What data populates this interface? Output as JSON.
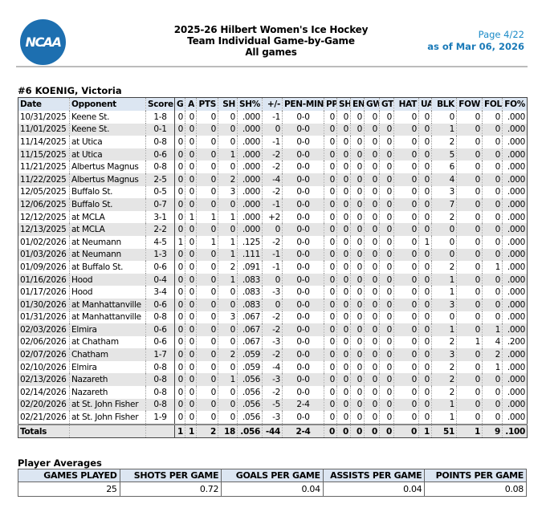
{
  "header": {
    "logo_text": "NCAA",
    "title": "2025-26 Hilbert Women's Ice Hockey",
    "subtitle": "Team Individual Game-by-Game",
    "filter": "All games",
    "page": "Page 4/22",
    "as_of": "as of Mar 06, 2026"
  },
  "player": "#6 KOENIG, Victoria",
  "columns": [
    "Date",
    "Opponent",
    "Score",
    "G",
    "A",
    "PTS",
    "SH",
    "SH%",
    "+/-",
    "PEN-MIN",
    "PP",
    "SH",
    "EN",
    "GW",
    "GT",
    "HAT",
    "UA",
    "BLK",
    "FOW",
    "FOL",
    "FO%"
  ],
  "rows": [
    [
      "10/31/2025",
      "Keene St.",
      "1-8",
      "0",
      "0",
      "0",
      "0",
      ".000",
      "-1",
      "0-0",
      "0",
      "0",
      "0",
      "0",
      "0",
      "0",
      "0",
      "0",
      "0",
      "0",
      ".000"
    ],
    [
      "11/01/2025",
      "Keene St.",
      "0-1",
      "0",
      "0",
      "0",
      "0",
      ".000",
      "0",
      "0-0",
      "0",
      "0",
      "0",
      "0",
      "0",
      "0",
      "0",
      "1",
      "0",
      "0",
      ".000"
    ],
    [
      "11/14/2025",
      "at Utica",
      "0-8",
      "0",
      "0",
      "0",
      "0",
      ".000",
      "-1",
      "0-0",
      "0",
      "0",
      "0",
      "0",
      "0",
      "0",
      "0",
      "2",
      "0",
      "0",
      ".000"
    ],
    [
      "11/15/2025",
      "at Utica",
      "0-6",
      "0",
      "0",
      "0",
      "1",
      ".000",
      "-2",
      "0-0",
      "0",
      "0",
      "0",
      "0",
      "0",
      "0",
      "0",
      "5",
      "0",
      "0",
      ".000"
    ],
    [
      "11/21/2025",
      "Albertus Magnus",
      "0-8",
      "0",
      "0",
      "0",
      "0",
      ".000",
      "-2",
      "0-0",
      "0",
      "0",
      "0",
      "0",
      "0",
      "0",
      "0",
      "6",
      "0",
      "0",
      ".000"
    ],
    [
      "11/22/2025",
      "Albertus Magnus",
      "2-5",
      "0",
      "0",
      "0",
      "2",
      ".000",
      "-4",
      "0-0",
      "0",
      "0",
      "0",
      "0",
      "0",
      "0",
      "0",
      "4",
      "0",
      "0",
      ".000"
    ],
    [
      "12/05/2025",
      "Buffalo St.",
      "0-5",
      "0",
      "0",
      "0",
      "3",
      ".000",
      "-2",
      "0-0",
      "0",
      "0",
      "0",
      "0",
      "0",
      "0",
      "0",
      "3",
      "0",
      "0",
      ".000"
    ],
    [
      "12/06/2025",
      "Buffalo St.",
      "0-7",
      "0",
      "0",
      "0",
      "0",
      ".000",
      "-1",
      "0-0",
      "0",
      "0",
      "0",
      "0",
      "0",
      "0",
      "0",
      "7",
      "0",
      "0",
      ".000"
    ],
    [
      "12/12/2025",
      "at MCLA",
      "3-1",
      "0",
      "1",
      "1",
      "1",
      ".000",
      "+2",
      "0-0",
      "0",
      "0",
      "0",
      "0",
      "0",
      "0",
      "0",
      "2",
      "0",
      "0",
      ".000"
    ],
    [
      "12/13/2025",
      "at MCLA",
      "2-2",
      "0",
      "0",
      "0",
      "0",
      ".000",
      "0",
      "0-0",
      "0",
      "0",
      "0",
      "0",
      "0",
      "0",
      "0",
      "0",
      "0",
      "0",
      ".000"
    ],
    [
      "01/02/2026",
      "at Neumann",
      "4-5",
      "1",
      "0",
      "1",
      "1",
      ".125",
      "-2",
      "0-0",
      "0",
      "0",
      "0",
      "0",
      "0",
      "0",
      "1",
      "0",
      "0",
      "0",
      ".000"
    ],
    [
      "01/03/2026",
      "at Neumann",
      "1-3",
      "0",
      "0",
      "0",
      "1",
      ".111",
      "-1",
      "0-0",
      "0",
      "0",
      "0",
      "0",
      "0",
      "0",
      "0",
      "0",
      "0",
      "0",
      ".000"
    ],
    [
      "01/09/2026",
      "at Buffalo St.",
      "0-6",
      "0",
      "0",
      "0",
      "2",
      ".091",
      "-1",
      "0-0",
      "0",
      "0",
      "0",
      "0",
      "0",
      "0",
      "0",
      "2",
      "0",
      "1",
      ".000"
    ],
    [
      "01/16/2026",
      "Hood",
      "0-4",
      "0",
      "0",
      "0",
      "1",
      ".083",
      "0",
      "0-0",
      "0",
      "0",
      "0",
      "0",
      "0",
      "0",
      "0",
      "1",
      "0",
      "0",
      ".000"
    ],
    [
      "01/17/2026",
      "Hood",
      "3-4",
      "0",
      "0",
      "0",
      "0",
      ".083",
      "-3",
      "0-0",
      "0",
      "0",
      "0",
      "0",
      "0",
      "0",
      "0",
      "1",
      "0",
      "0",
      ".000"
    ],
    [
      "01/30/2026",
      "at Manhattanville",
      "0-6",
      "0",
      "0",
      "0",
      "0",
      ".083",
      "0",
      "0-0",
      "0",
      "0",
      "0",
      "0",
      "0",
      "0",
      "0",
      "3",
      "0",
      "0",
      ".000"
    ],
    [
      "01/31/2026",
      "at Manhattanville",
      "0-8",
      "0",
      "0",
      "0",
      "3",
      ".067",
      "-2",
      "0-0",
      "0",
      "0",
      "0",
      "0",
      "0",
      "0",
      "0",
      "0",
      "0",
      "0",
      ".000"
    ],
    [
      "02/03/2026",
      "Elmira",
      "0-6",
      "0",
      "0",
      "0",
      "0",
      ".067",
      "-2",
      "0-0",
      "0",
      "0",
      "0",
      "0",
      "0",
      "0",
      "0",
      "1",
      "0",
      "1",
      ".000"
    ],
    [
      "02/06/2026",
      "at Chatham",
      "0-6",
      "0",
      "0",
      "0",
      "0",
      ".067",
      "-3",
      "0-0",
      "0",
      "0",
      "0",
      "0",
      "0",
      "0",
      "0",
      "2",
      "1",
      "4",
      ".200"
    ],
    [
      "02/07/2026",
      "Chatham",
      "1-7",
      "0",
      "0",
      "0",
      "2",
      ".059",
      "-2",
      "0-0",
      "0",
      "0",
      "0",
      "0",
      "0",
      "0",
      "0",
      "3",
      "0",
      "2",
      ".000"
    ],
    [
      "02/10/2026",
      "Elmira",
      "0-8",
      "0",
      "0",
      "0",
      "0",
      ".059",
      "-4",
      "0-0",
      "0",
      "0",
      "0",
      "0",
      "0",
      "0",
      "0",
      "2",
      "0",
      "1",
      ".000"
    ],
    [
      "02/13/2026",
      "Nazareth",
      "0-8",
      "0",
      "0",
      "0",
      "1",
      ".056",
      "-3",
      "0-0",
      "0",
      "0",
      "0",
      "0",
      "0",
      "0",
      "0",
      "2",
      "0",
      "0",
      ".000"
    ],
    [
      "02/14/2026",
      "Nazareth",
      "0-8",
      "0",
      "0",
      "0",
      "0",
      ".056",
      "-2",
      "0-0",
      "0",
      "0",
      "0",
      "0",
      "0",
      "0",
      "0",
      "2",
      "0",
      "0",
      ".000"
    ],
    [
      "02/20/2026",
      "at St. John Fisher",
      "0-8",
      "0",
      "0",
      "0",
      "0",
      ".056",
      "-5",
      "2-4",
      "0",
      "0",
      "0",
      "0",
      "0",
      "0",
      "0",
      "1",
      "0",
      "0",
      ".000"
    ],
    [
      "02/21/2026",
      "at St. John Fisher",
      "1-9",
      "0",
      "0",
      "0",
      "0",
      ".056",
      "-3",
      "0-0",
      "0",
      "0",
      "0",
      "0",
      "0",
      "0",
      "0",
      "1",
      "0",
      "0",
      ".000"
    ]
  ],
  "totals": [
    "Totals",
    "",
    "",
    "1",
    "1",
    "2",
    "18",
    ".056",
    "-44",
    "2-4",
    "0",
    "0",
    "0",
    "0",
    "0",
    "0",
    "1",
    "51",
    "1",
    "9",
    ".100"
  ],
  "averages": {
    "title": "Player Averages",
    "columns": [
      "GAMES PLAYED",
      "SHOTS PER GAME",
      "GOALS PER GAME",
      "ASSISTS PER GAME",
      "POINTS PER GAME"
    ],
    "values": [
      "25",
      "0.72",
      "0.04",
      "0.04",
      "0.08"
    ]
  }
}
